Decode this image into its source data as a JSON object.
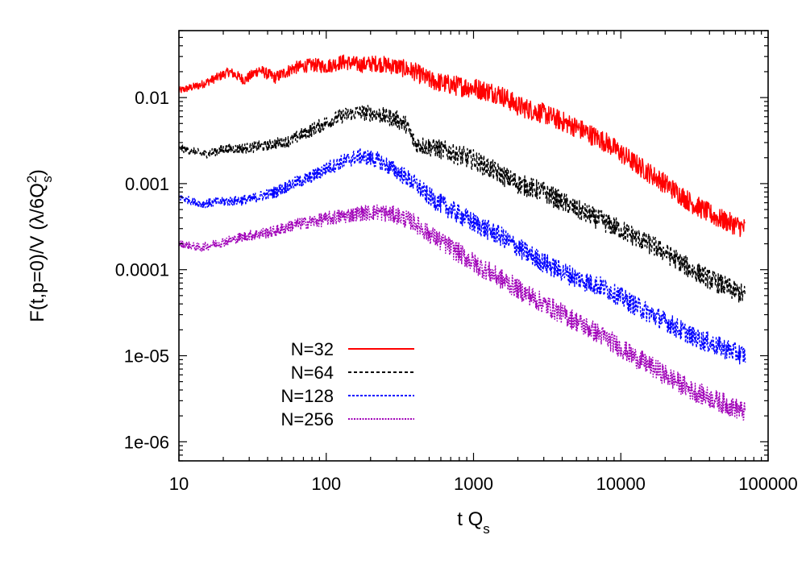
{
  "chart_data": {
    "type": "line",
    "title": "",
    "xlabel": "t Q",
    "xlabel_sub": "s",
    "ylabel": {
      "main": "F(t,p=0)/V (λ/6Q",
      "sup": "2",
      "sub": "s",
      "close": ")"
    },
    "xscale": "log",
    "yscale": "log",
    "xlim": [
      10,
      100000
    ],
    "ylim": [
      6e-07,
      0.06
    ],
    "xticks": [
      {
        "value": 10,
        "label": "10"
      },
      {
        "value": 100,
        "label": "100"
      },
      {
        "value": 1000,
        "label": "1000"
      },
      {
        "value": 10000,
        "label": "10000"
      },
      {
        "value": 100000,
        "label": "100000"
      }
    ],
    "yticks": [
      {
        "value": 0.01,
        "label": "0.01"
      },
      {
        "value": 0.001,
        "label": "0.001"
      },
      {
        "value": 0.0001,
        "label": "0.0001"
      },
      {
        "value": 1e-05,
        "label": "1e-05"
      },
      {
        "value": 1e-06,
        "label": "1e-06"
      }
    ],
    "grid": false,
    "legend_position": "bottom-left",
    "series": [
      {
        "name": "N=32",
        "color": "#ff0000",
        "dash": "solid",
        "x": [
          10,
          14,
          18,
          22,
          28,
          35,
          45,
          60,
          80,
          100,
          130,
          170,
          220,
          300,
          400,
          500,
          700,
          1000,
          1500,
          2000,
          3000,
          5000,
          8000,
          12000,
          20000,
          30000,
          45000,
          70000
        ],
        "y": [
          0.012,
          0.014,
          0.017,
          0.02,
          0.016,
          0.021,
          0.017,
          0.022,
          0.024,
          0.023,
          0.026,
          0.024,
          0.025,
          0.023,
          0.02,
          0.016,
          0.014,
          0.013,
          0.011,
          0.008,
          0.0065,
          0.0045,
          0.003,
          0.0018,
          0.001,
          0.0006,
          0.0004,
          0.0003
        ],
        "noise": 0.12
      },
      {
        "name": "N=64",
        "color": "#000000",
        "dash": "4,3",
        "x": [
          10,
          15,
          20,
          30,
          40,
          55,
          75,
          100,
          130,
          170,
          220,
          300,
          350,
          400,
          600,
          1000,
          1500,
          2000,
          3000,
          5000,
          8000,
          12000,
          20000,
          30000,
          45000,
          70000
        ],
        "y": [
          0.0026,
          0.0022,
          0.0025,
          0.0026,
          0.0028,
          0.0031,
          0.004,
          0.0051,
          0.0062,
          0.0068,
          0.0064,
          0.0056,
          0.0048,
          0.0029,
          0.0025,
          0.0019,
          0.0013,
          0.001,
          0.0008,
          0.0005,
          0.00035,
          0.00025,
          0.00016,
          0.0001,
          7e-05,
          5e-05
        ],
        "noise": 0.12
      },
      {
        "name": "N=128",
        "color": "#0000ff",
        "dash": "3,2",
        "x": [
          10,
          14,
          20,
          30,
          45,
          60,
          80,
          100,
          130,
          170,
          220,
          300,
          400,
          500,
          700,
          1000,
          1500,
          2000,
          3000,
          5000,
          8000,
          12000,
          20000,
          30000,
          45000,
          70000
        ],
        "y": [
          0.0007,
          0.00058,
          0.00062,
          0.00065,
          0.0008,
          0.001,
          0.0012,
          0.0015,
          0.0018,
          0.0021,
          0.0019,
          0.0014,
          0.001,
          0.0007,
          0.0005,
          0.00035,
          0.00025,
          0.00018,
          0.00012,
          8e-05,
          6e-05,
          4e-05,
          2.5e-05,
          1.7e-05,
          1.3e-05,
          1e-05
        ],
        "noise": 0.12
      },
      {
        "name": "N=256",
        "color": "#a000b8",
        "dash": "2,1.5",
        "x": [
          10,
          14,
          20,
          30,
          45,
          60,
          80,
          100,
          130,
          170,
          220,
          300,
          400,
          500,
          700,
          1000,
          1500,
          2000,
          3000,
          5000,
          8000,
          12000,
          20000,
          30000,
          45000,
          70000
        ],
        "y": [
          0.0002,
          0.00018,
          0.00021,
          0.00025,
          0.00028,
          0.00033,
          0.00036,
          0.00039,
          0.00042,
          0.00045,
          0.00047,
          0.00043,
          0.00035,
          0.00026,
          0.00018,
          0.00012,
          8e-05,
          6e-05,
          4e-05,
          2.5e-05,
          1.6e-05,
          1e-05,
          6e-06,
          4e-06,
          3e-06,
          2.2e-06
        ],
        "noise": 0.12
      }
    ]
  }
}
